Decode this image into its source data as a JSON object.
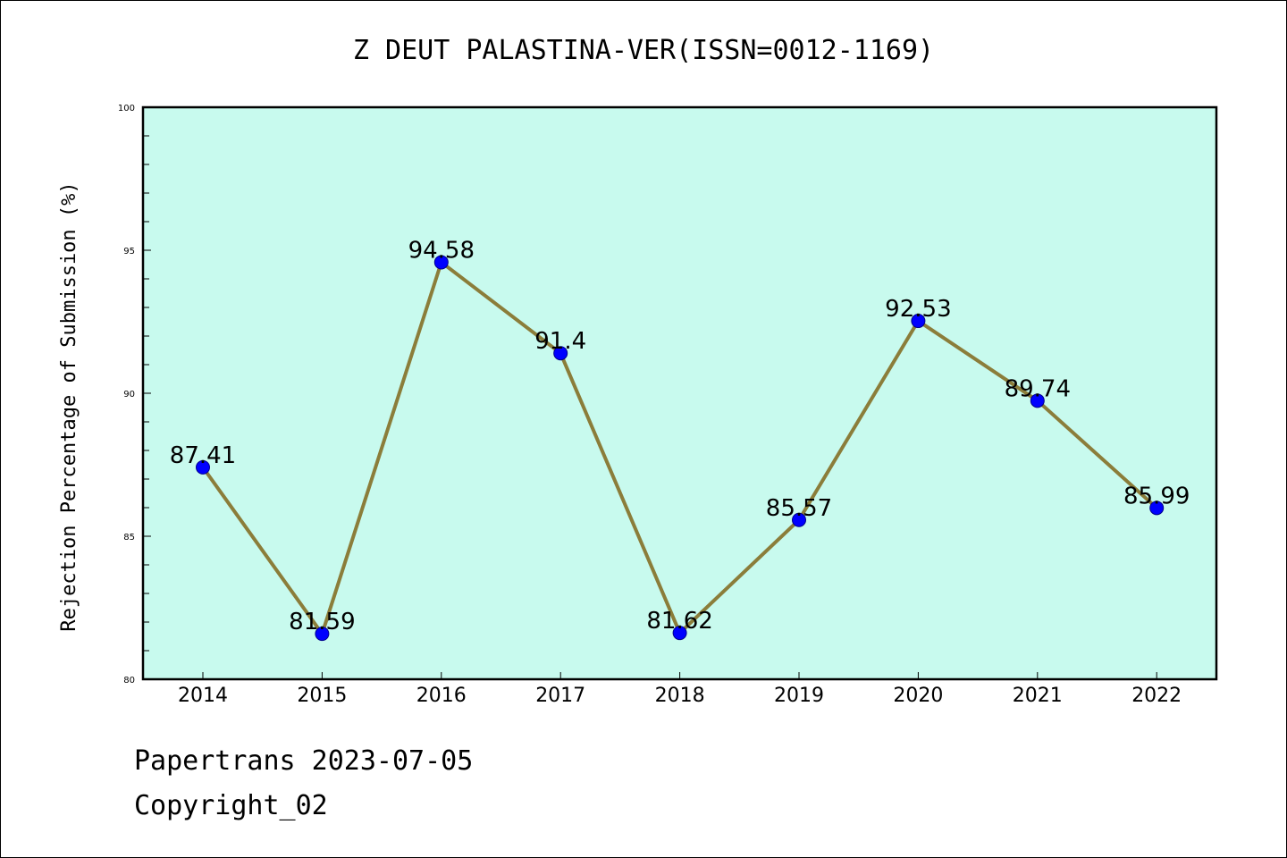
{
  "chart_data": {
    "type": "line",
    "title": "Z DEUT PALASTINA-VER(ISSN=0012-1169)",
    "xlabel": "",
    "ylabel": "Rejection Percentage of Submission (%)",
    "categories": [
      "2014",
      "2015",
      "2016",
      "2017",
      "2018",
      "2019",
      "2020",
      "2021",
      "2022"
    ],
    "values": [
      87.41,
      81.59,
      94.58,
      91.4,
      81.62,
      85.57,
      92.53,
      89.74,
      85.99
    ],
    "data_labels": [
      "87.41",
      "81.59",
      "94.58",
      "91.4",
      "81.62",
      "85.57",
      "92.53",
      "89.74",
      "85.99"
    ],
    "ylim": [
      80,
      100
    ],
    "yticks": [
      "80",
      "85",
      "90",
      "95",
      "100"
    ],
    "grid": false,
    "colors": {
      "plot_background": "#c8faee",
      "line": "#8b7d3a",
      "marker": "#0000ff"
    }
  },
  "footer": {
    "date_text": "Papertrans 2023-07-05",
    "copyright_text": "Copyright_02"
  }
}
